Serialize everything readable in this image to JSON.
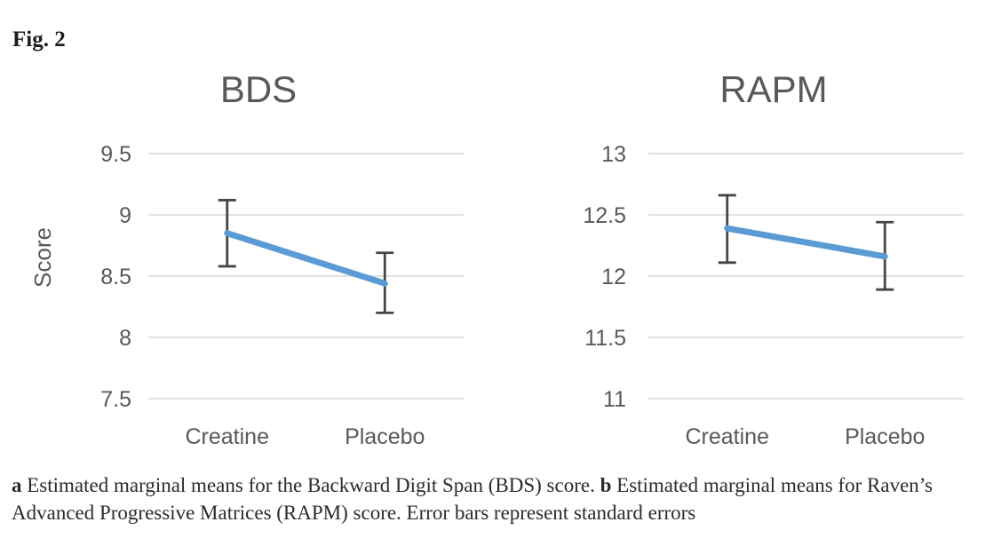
{
  "figure": {
    "label": "Fig. 2"
  },
  "caption": {
    "part_a_marker": "a",
    "part_a_text": " Estimated marginal means for the Backward Digit Span (BDS) score. ",
    "part_b_marker": "b",
    "part_b_text": " Estimated marginal means for Raven’s Advanced Progressive Matrices (RAPM) score. Error bars represent standard errors"
  },
  "colors": {
    "line": "#5b9bd5",
    "error_bar": "#454545",
    "grid": "#d7d7d7",
    "axis_text": "#595959",
    "figure_text": "#1d1d1d"
  },
  "chart_data": [
    {
      "type": "line",
      "title": "BDS",
      "ylabel": "Score",
      "xlabel": "",
      "categories": [
        "Creatine",
        "Placebo"
      ],
      "series": [
        {
          "name": "Estimated marginal mean",
          "values": [
            8.85,
            8.44
          ],
          "error_low": [
            8.58,
            8.2
          ],
          "error_high": [
            9.12,
            8.69
          ]
        }
      ],
      "ylim": [
        7.5,
        9.5
      ],
      "yticks": [
        9.5,
        9,
        8.5,
        8,
        7.5
      ],
      "grid": true,
      "legend": "none"
    },
    {
      "type": "line",
      "title": "RAPM",
      "ylabel": "",
      "xlabel": "",
      "categories": [
        "Creatine",
        "Placebo"
      ],
      "series": [
        {
          "name": "Estimated marginal mean",
          "values": [
            12.39,
            12.16
          ],
          "error_low": [
            12.11,
            11.89
          ],
          "error_high": [
            12.66,
            12.44
          ]
        }
      ],
      "ylim": [
        11,
        13
      ],
      "yticks": [
        13,
        12.5,
        12,
        11.5,
        11
      ],
      "grid": true,
      "legend": "none"
    }
  ]
}
